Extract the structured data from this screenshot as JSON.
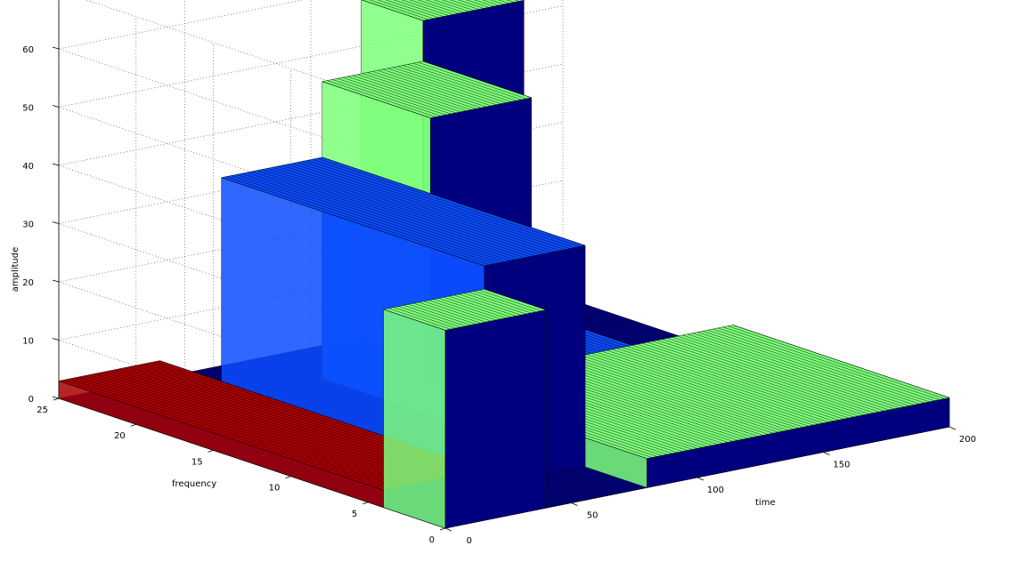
{
  "chart_data": {
    "type": "surface",
    "title": "",
    "xlabel": "time",
    "ylabel": "frequency",
    "zlabel": "amplitude",
    "x_ticks": [
      0,
      50,
      100,
      150,
      200
    ],
    "y_ticks": [
      0,
      5,
      10,
      15,
      20,
      25
    ],
    "z_ticks": [
      0,
      10,
      20,
      30,
      40,
      50,
      60,
      70
    ],
    "xlim": [
      0,
      200
    ],
    "ylim": [
      0,
      25
    ],
    "zlim": [
      0,
      70
    ],
    "grid": true,
    "colormap": "jet",
    "pulses": [
      {
        "t_start": 0,
        "t_end": 40,
        "f_start": 0,
        "f_end": 4,
        "amplitude": 34,
        "color": "#7dff7a"
      },
      {
        "t_start": 0,
        "t_end": 40,
        "f_start": 4,
        "f_end": 25,
        "amplitude": 3,
        "color": "#aa0000"
      },
      {
        "t_start": 40,
        "t_end": 80,
        "f_start": 4,
        "f_end": 21,
        "amplitude": 38,
        "color": "#0a4cff"
      },
      {
        "t_start": 80,
        "t_end": 200,
        "f_start": 0,
        "f_end": 14,
        "amplitude": 5,
        "color": "#7dff7a"
      },
      {
        "t_start": 80,
        "t_end": 120,
        "f_start": 14,
        "f_end": 21,
        "amplitude": 51,
        "color": "#7dff7a"
      },
      {
        "t_start": 120,
        "t_end": 160,
        "f_start": 14,
        "f_end": 21,
        "amplitude": 5,
        "color": "#0a4cff"
      },
      {
        "t_start": 120,
        "t_end": 160,
        "f_start": 21,
        "f_end": 25,
        "amplitude": 58,
        "color": "#7dff7a"
      }
    ],
    "base_color": "#00007f"
  }
}
